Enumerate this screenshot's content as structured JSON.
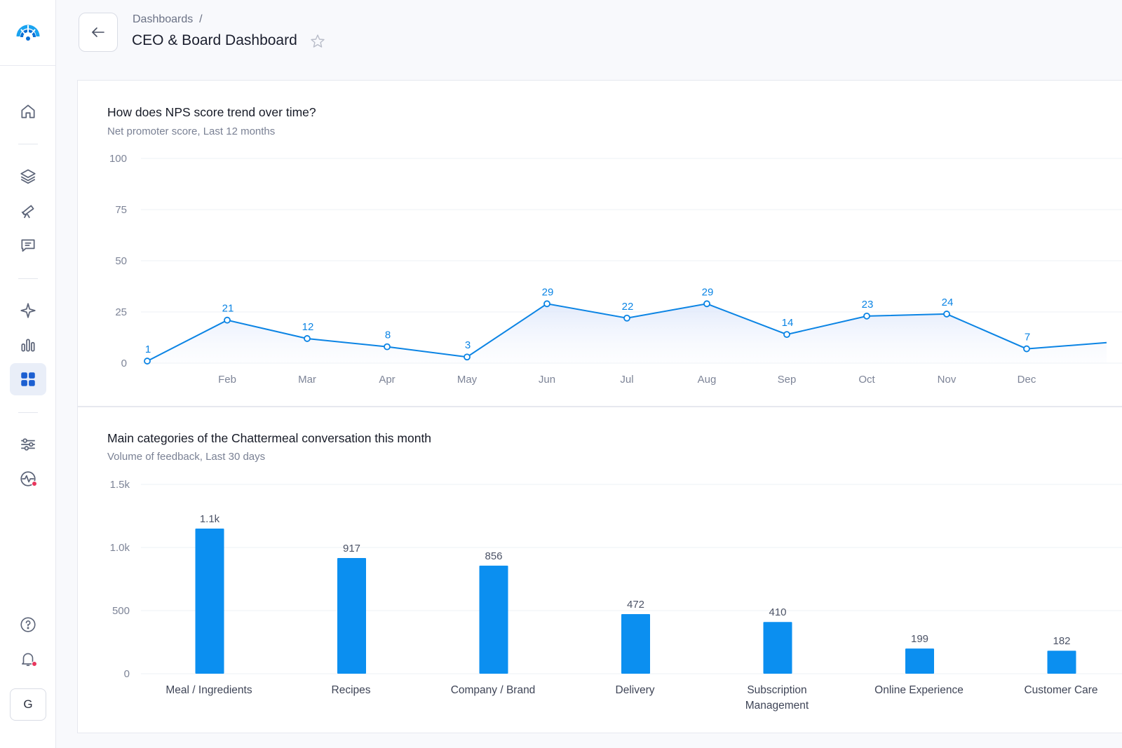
{
  "header": {
    "breadcrumb": "Dashboards  /",
    "title": "CEO & Board Dashboard"
  },
  "sidebar": {
    "items": [
      {
        "name": "home",
        "icon": "home-icon"
      },
      {
        "name": "layers",
        "icon": "layers-icon"
      },
      {
        "name": "telescope",
        "icon": "telescope-icon"
      },
      {
        "name": "messages",
        "icon": "message-icon"
      },
      {
        "name": "sparkle",
        "icon": "sparkle-icon"
      },
      {
        "name": "analytics",
        "icon": "bar-chart-icon"
      },
      {
        "name": "dashboards",
        "icon": "grid-icon",
        "active": true
      },
      {
        "name": "filters",
        "icon": "sliders-icon"
      },
      {
        "name": "pulse",
        "icon": "pulse-icon"
      },
      {
        "name": "help",
        "icon": "help-icon"
      },
      {
        "name": "notifications",
        "icon": "bell-icon"
      }
    ],
    "avatar_initial": "G"
  },
  "colors": {
    "accent": "#0b84e4",
    "bar": "#0b8ff0",
    "notification_dot": "#e8365d"
  },
  "cards": {
    "nps": {
      "title": "How does NPS score trend over time?",
      "subtitle": "Net promoter score, Last 12 months"
    },
    "categories": {
      "title": "Main categories of the Chattermeal conversation this month",
      "subtitle": "Volume of feedback, Last 30 days"
    }
  },
  "chart_data": [
    {
      "type": "line",
      "title": "How does NPS score trend over time?",
      "subtitle": "Net promoter score, Last 12 months",
      "x": [
        "",
        "Feb",
        "Mar",
        "Apr",
        "May",
        "Jun",
        "Jul",
        "Aug",
        "Sep",
        "Oct",
        "Nov",
        "Dec",
        ""
      ],
      "values": [
        1,
        21,
        12,
        8,
        3,
        29,
        22,
        29,
        14,
        23,
        24,
        7,
        10
      ],
      "data_labels": [
        "1",
        "21",
        "12",
        "8",
        "3",
        "29",
        "22",
        "29",
        "14",
        "23",
        "24",
        "7",
        ""
      ],
      "ylim": [
        0,
        100
      ],
      "yticks": [
        0,
        25,
        50,
        75,
        100
      ],
      "ytick_labels": [
        "0",
        "25",
        "50",
        "75",
        "100"
      ],
      "grid": true
    },
    {
      "type": "bar",
      "title": "Main categories of the Chattermeal conversation this month",
      "subtitle": "Volume of feedback, Last 30 days",
      "categories": [
        "Meal / Ingredients",
        "Recipes",
        "Company / Brand",
        "Delivery",
        "Subscription Management",
        "Online Experience",
        "Customer Care"
      ],
      "category_lines": [
        [
          "Meal / Ingredients"
        ],
        [
          "Recipes"
        ],
        [
          "Company / Brand"
        ],
        [
          "Delivery"
        ],
        [
          "Subscription",
          "Management"
        ],
        [
          "Online Experience"
        ],
        [
          "Customer Care"
        ]
      ],
      "values": [
        1150,
        917,
        856,
        472,
        410,
        199,
        182
      ],
      "data_labels": [
        "1.1k",
        "917",
        "856",
        "472",
        "410",
        "199",
        "182"
      ],
      "ylim": [
        0,
        1500
      ],
      "yticks": [
        0,
        500,
        1000,
        1500
      ],
      "ytick_labels": [
        "0",
        "500",
        "1.0k",
        "1.5k"
      ],
      "grid": true
    }
  ]
}
